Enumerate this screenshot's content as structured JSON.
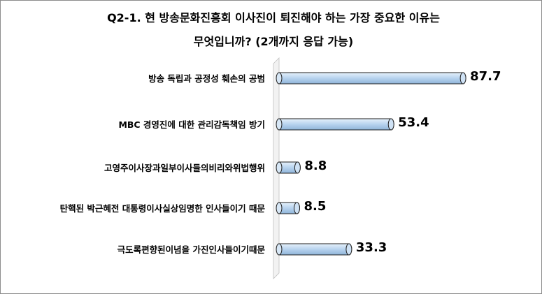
{
  "chart_data": {
    "type": "bar",
    "orientation": "horizontal",
    "title_lines": [
      "Q2-1. 현 방송문화진흥회 이사진이 퇴진해야 하는 가장 중요한 이유는",
      "무엇입니까? (2개까지 응답 가능)"
    ],
    "categories": [
      "방송 독립과 공정성 훼손의 공범",
      "MBC 경영진에 대한 관리감독책임 방기",
      "고영주이사장과일부이사들의비리와위법행위",
      "탄핵된 박근혜전 대통령이사실상임명한 인사들이기 때문",
      "극도록편향된이념을 가진인사들이기때문"
    ],
    "values": [
      87.7,
      53.4,
      8.8,
      8.5,
      33.3
    ],
    "value_labels": [
      "87.7",
      "53.4",
      "8.8",
      "8.5",
      "33.3"
    ],
    "xlim": [
      0,
      100
    ],
    "grid": false,
    "legend": "none",
    "bar_color": "#bcd6f0"
  }
}
